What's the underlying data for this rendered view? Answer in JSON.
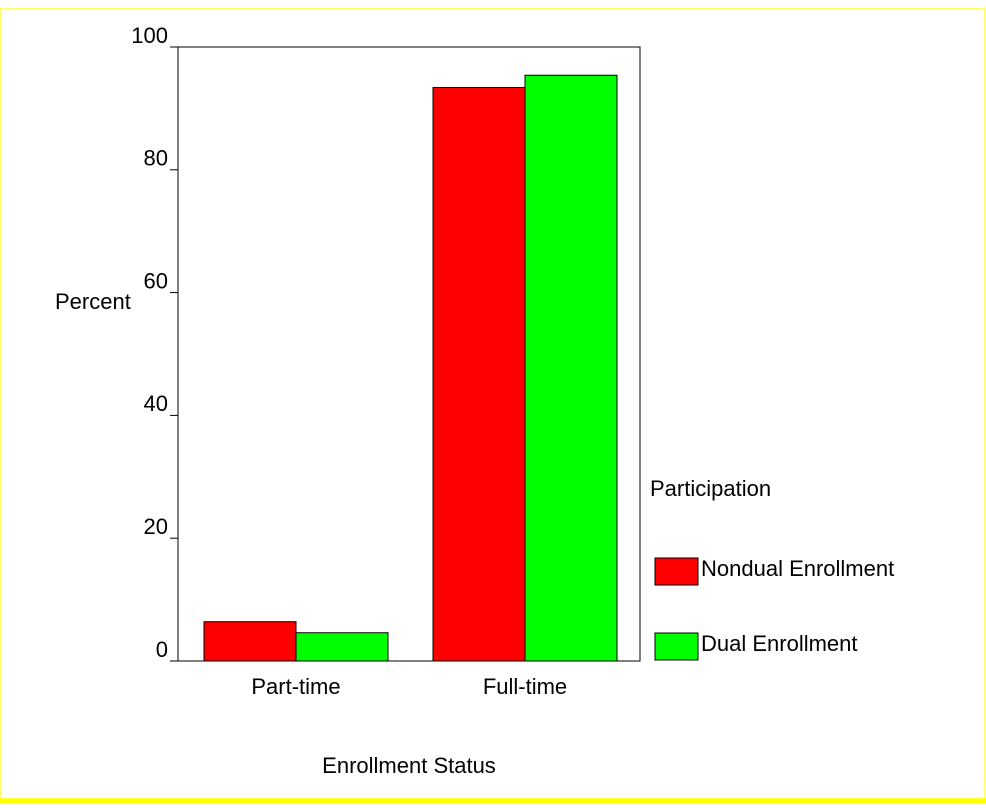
{
  "chart_data": {
    "type": "bar",
    "x_label": "Enrollment Status",
    "y_label": "Percent",
    "categories": [
      "Part-time",
      "Full-time"
    ],
    "series": [
      {
        "name": "Nondual Enrollment",
        "color": "#ff0000",
        "values": [
          6.4,
          93.4
        ]
      },
      {
        "name": "Dual Enrollment",
        "color": "#00ff00",
        "values": [
          4.6,
          95.4
        ]
      }
    ],
    "legend_title": "Participation",
    "legend": "right",
    "ylim": [
      0,
      100
    ],
    "yticks": [
      0,
      20,
      40,
      60,
      80,
      100
    ]
  }
}
